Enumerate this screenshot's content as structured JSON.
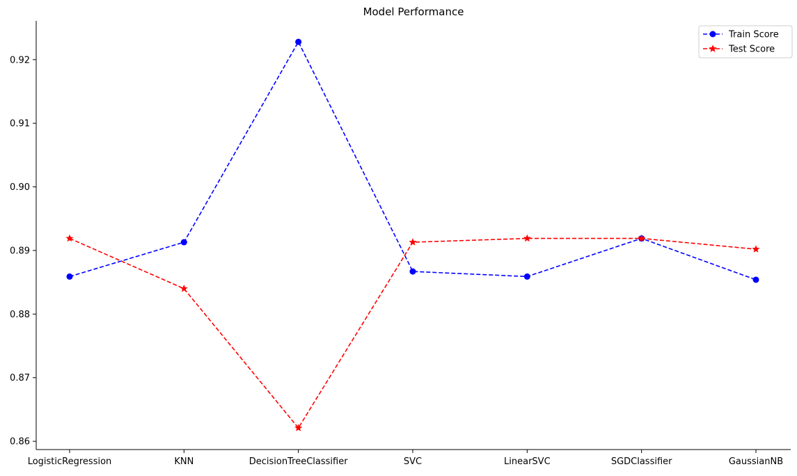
{
  "chart_data": {
    "type": "line",
    "title": "Model Performance",
    "xlabel": "",
    "ylabel": "",
    "categories": [
      "LogisticRegression",
      "KNN",
      "DecisionTreeClassifier",
      "SVC",
      "LinearSVC",
      "SGDClassifier",
      "GaussianNB"
    ],
    "ylim": [
      0.8587,
      0.9261
    ],
    "yticks": [
      0.86,
      0.87,
      0.88,
      0.89,
      0.9,
      0.91,
      0.92
    ],
    "ytick_labels": [
      "0.86",
      "0.87",
      "0.88",
      "0.89",
      "0.90",
      "0.91",
      "0.92"
    ],
    "grid": false,
    "legend_position": "top-right",
    "series": [
      {
        "name": "Train Score",
        "color": "#0000ff",
        "marker": "circle",
        "linestyle": "dashed",
        "values": [
          0.8859,
          0.8913,
          0.9228,
          0.8867,
          0.8859,
          0.8919,
          0.8854
        ]
      },
      {
        "name": "Test Score",
        "color": "#ff0000",
        "marker": "star",
        "linestyle": "dashed",
        "values": [
          0.8919,
          0.884,
          0.8621,
          0.8913,
          0.8919,
          0.8919,
          0.8902
        ]
      }
    ]
  }
}
